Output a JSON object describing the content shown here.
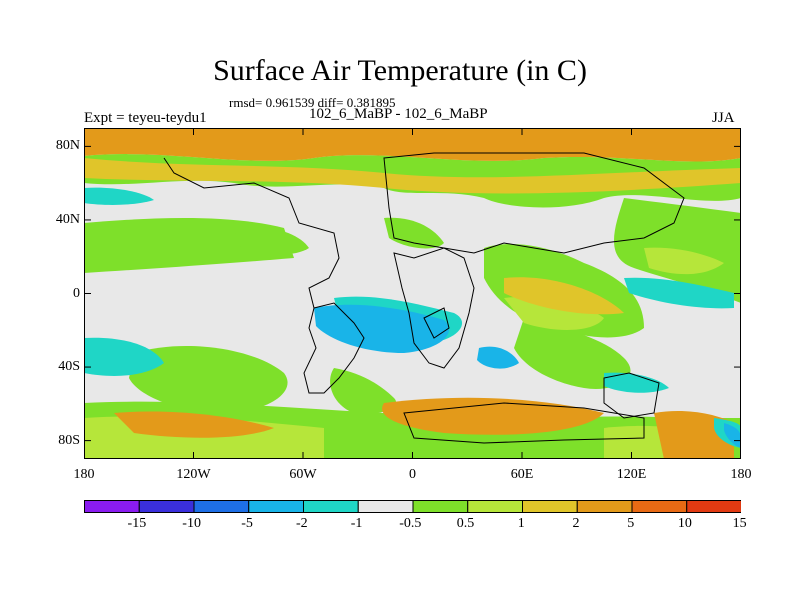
{
  "title": "Surface Air Temperature (in C)",
  "stats": "rmsd= 0.961539  diff= 0.381895",
  "experiment": "Expt = teyeu-teydu1",
  "runs": "102_6_MaBP - 102_6_MaBP",
  "season": "JJA",
  "lon_labels": [
    "180",
    "120W",
    "60W",
    "0",
    "60E",
    "120E",
    "180"
  ],
  "lat_labels": [
    "80N",
    "40N",
    "0",
    "40S",
    "80S"
  ],
  "lon_values": [
    -180,
    -120,
    -60,
    0,
    60,
    120,
    180
  ],
  "lat_values": [
    80,
    40,
    0,
    -40,
    -80
  ],
  "legend": {
    "colors": [
      "#8a1cf0",
      "#3a2fdc",
      "#1e6fe6",
      "#19b4e8",
      "#1fd6c6",
      "#e8e8e8",
      "#7ee02a",
      "#b6e63a",
      "#e0c52a",
      "#e39a1a",
      "#e86a14",
      "#e23a12"
    ],
    "labels": [
      "-15",
      "-10",
      "-5",
      "-2",
      "-1",
      "-0.5",
      "0.5",
      "1",
      "2",
      "5",
      "10",
      "15"
    ]
  }
}
